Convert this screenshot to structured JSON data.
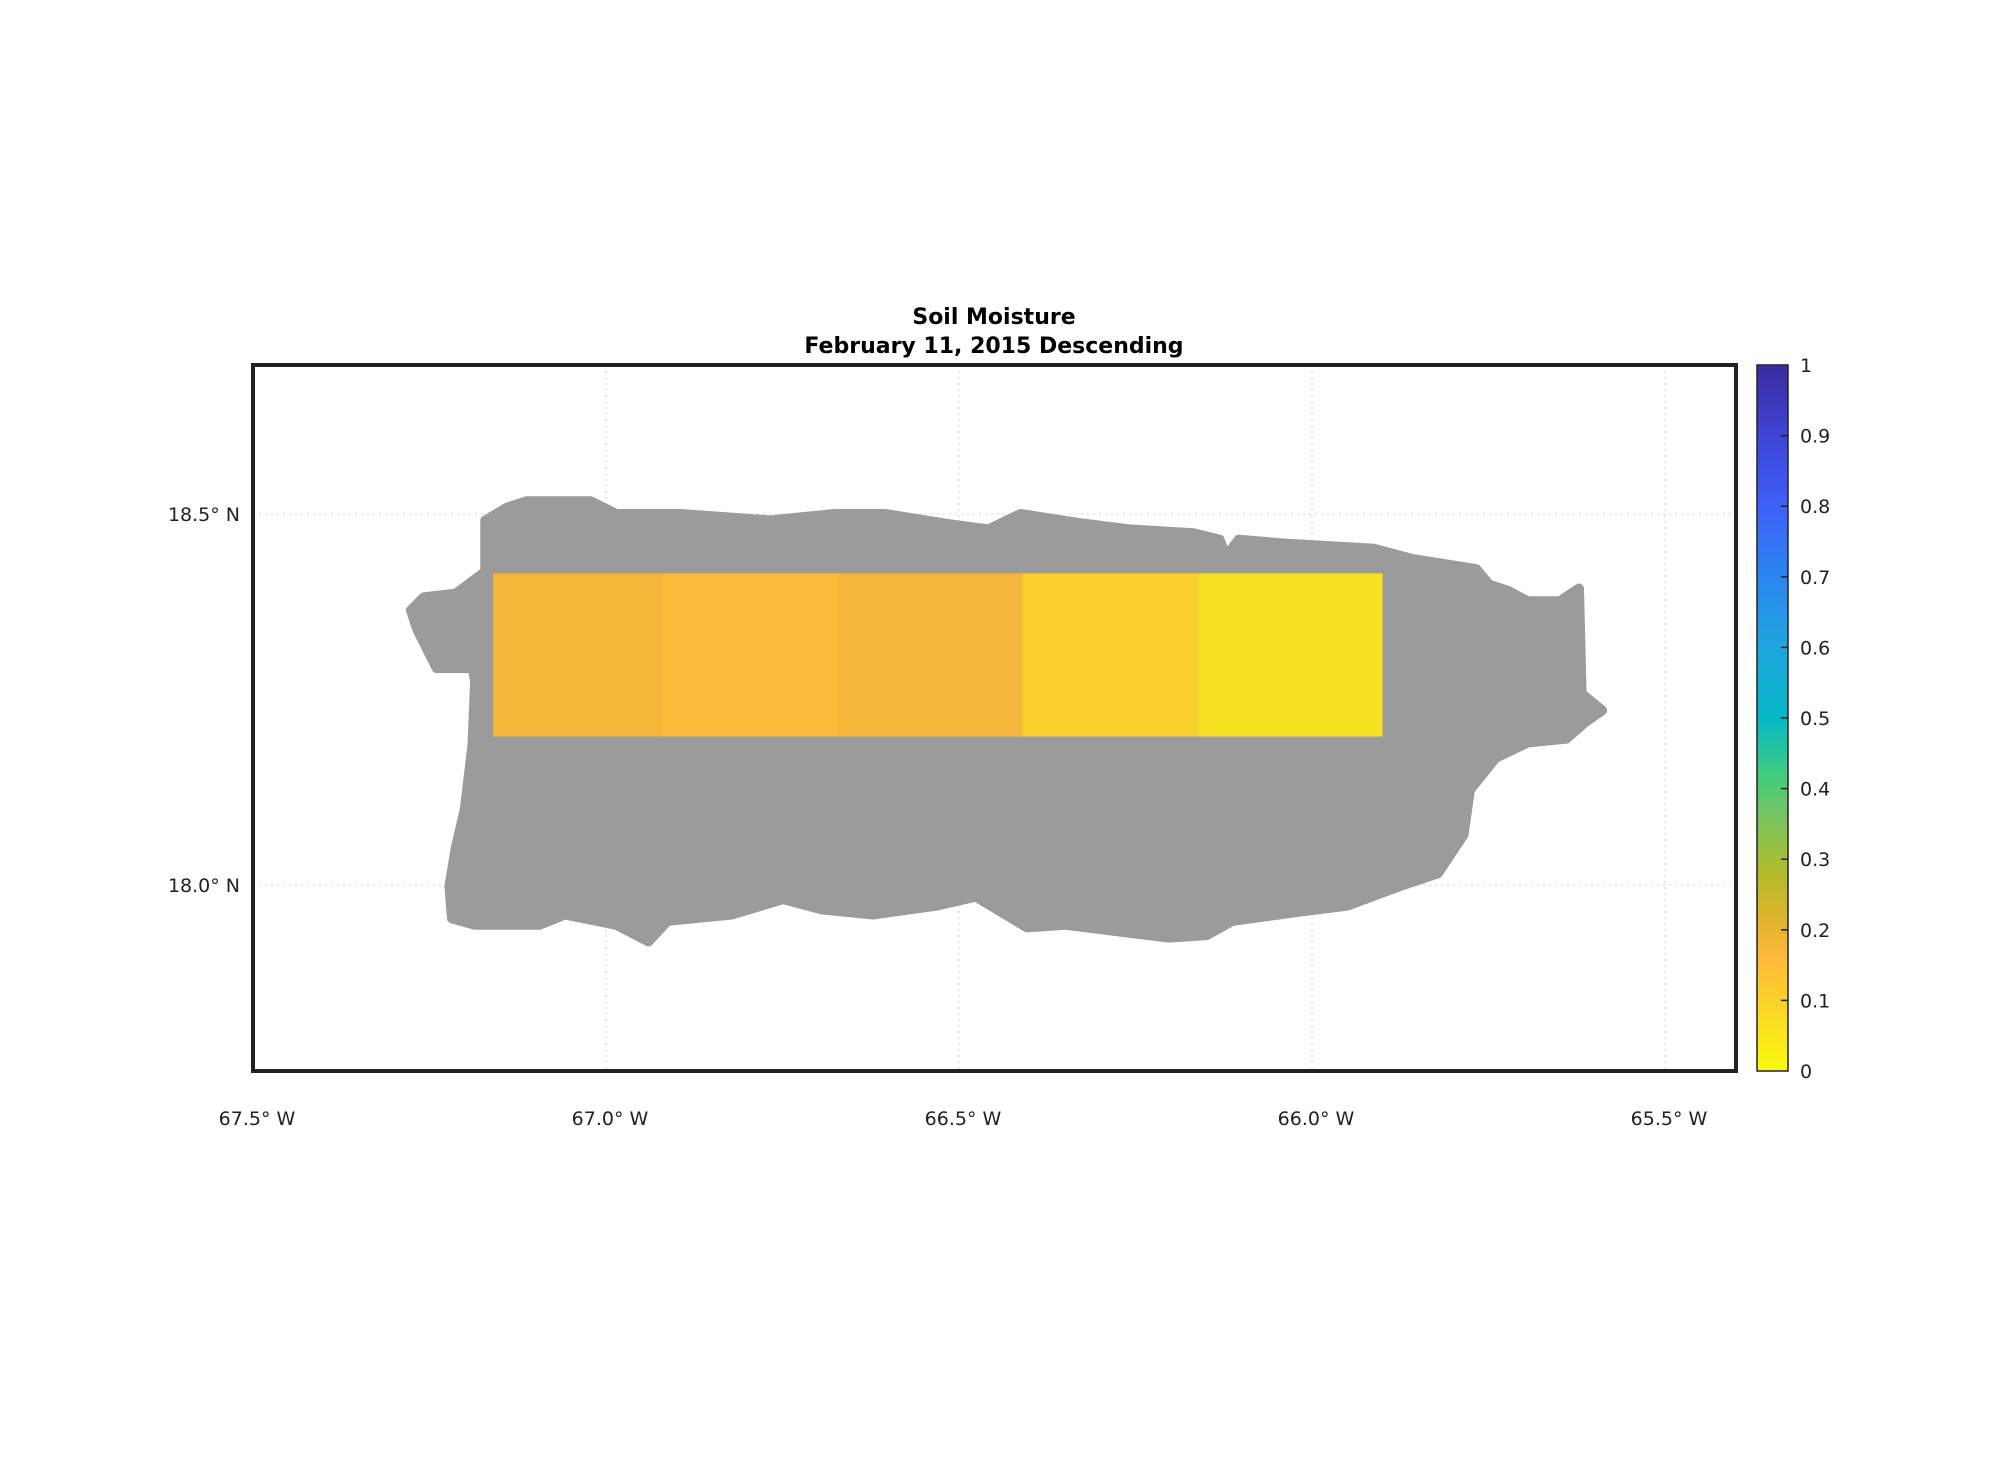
{
  "chart_data": {
    "type": "heatmap",
    "title": "Soil Moisture",
    "subtitle": "February 11, 2015 Descending",
    "xlim": [
      -67.5,
      -65.4
    ],
    "ylim": [
      17.75,
      18.7
    ],
    "grid": true,
    "x_ticks": [
      {
        "value": -67.5,
        "label": "67.5° W"
      },
      {
        "value": -67.0,
        "label": "67.0° W"
      },
      {
        "value": -66.5,
        "label": "66.5° W"
      },
      {
        "value": -66.0,
        "label": "66.0° W"
      },
      {
        "value": -65.5,
        "label": "65.5° W"
      }
    ],
    "y_ticks": [
      {
        "value": 18.5,
        "label": "18.5° N"
      },
      {
        "value": 18.0,
        "label": "18.0° N"
      }
    ],
    "land_color": "#9b9b9b",
    "cells": [
      {
        "lon_min": -67.16,
        "lon_max": -66.92,
        "lat_min": 18.2,
        "lat_max": 18.42,
        "value": 0.17
      },
      {
        "lon_min": -66.92,
        "lon_max": -66.67,
        "lat_min": 18.2,
        "lat_max": 18.42,
        "value": 0.16
      },
      {
        "lon_min": -66.67,
        "lon_max": -66.41,
        "lat_min": 18.2,
        "lat_max": 18.42,
        "value": 0.17
      },
      {
        "lon_min": -66.41,
        "lon_max": -66.16,
        "lat_min": 18.2,
        "lat_max": 18.42,
        "value": 0.12
      },
      {
        "lon_min": -66.16,
        "lon_max": -65.9,
        "lat_min": 18.2,
        "lat_max": 18.42,
        "value": 0.06
      }
    ],
    "cell_colors": [
      "#f5b73a",
      "#fbbb3a",
      "#f5b73b",
      "#fad02e",
      "#f4e122"
    ],
    "colorbar": {
      "range": [
        0,
        1
      ],
      "ticks": [
        "0",
        "0.1",
        "0.2",
        "0.3",
        "0.4",
        "0.5",
        "0.6",
        "0.7",
        "0.8",
        "0.9",
        "1"
      ],
      "colormap": [
        [
          0.0,
          "#f9fb0e"
        ],
        [
          0.1,
          "#fbd12a"
        ],
        [
          0.16,
          "#fdba3a"
        ],
        [
          0.22,
          "#dcb42a"
        ],
        [
          0.28,
          "#b2bb2c"
        ],
        [
          0.35,
          "#7fc45a"
        ],
        [
          0.42,
          "#3fcc80"
        ],
        [
          0.5,
          "#06b8c7"
        ],
        [
          0.6,
          "#1fa6df"
        ],
        [
          0.7,
          "#2c85f0"
        ],
        [
          0.8,
          "#3e60f8"
        ],
        [
          0.9,
          "#3f44d6"
        ],
        [
          1.0,
          "#3a2b9f"
        ]
      ]
    }
  }
}
